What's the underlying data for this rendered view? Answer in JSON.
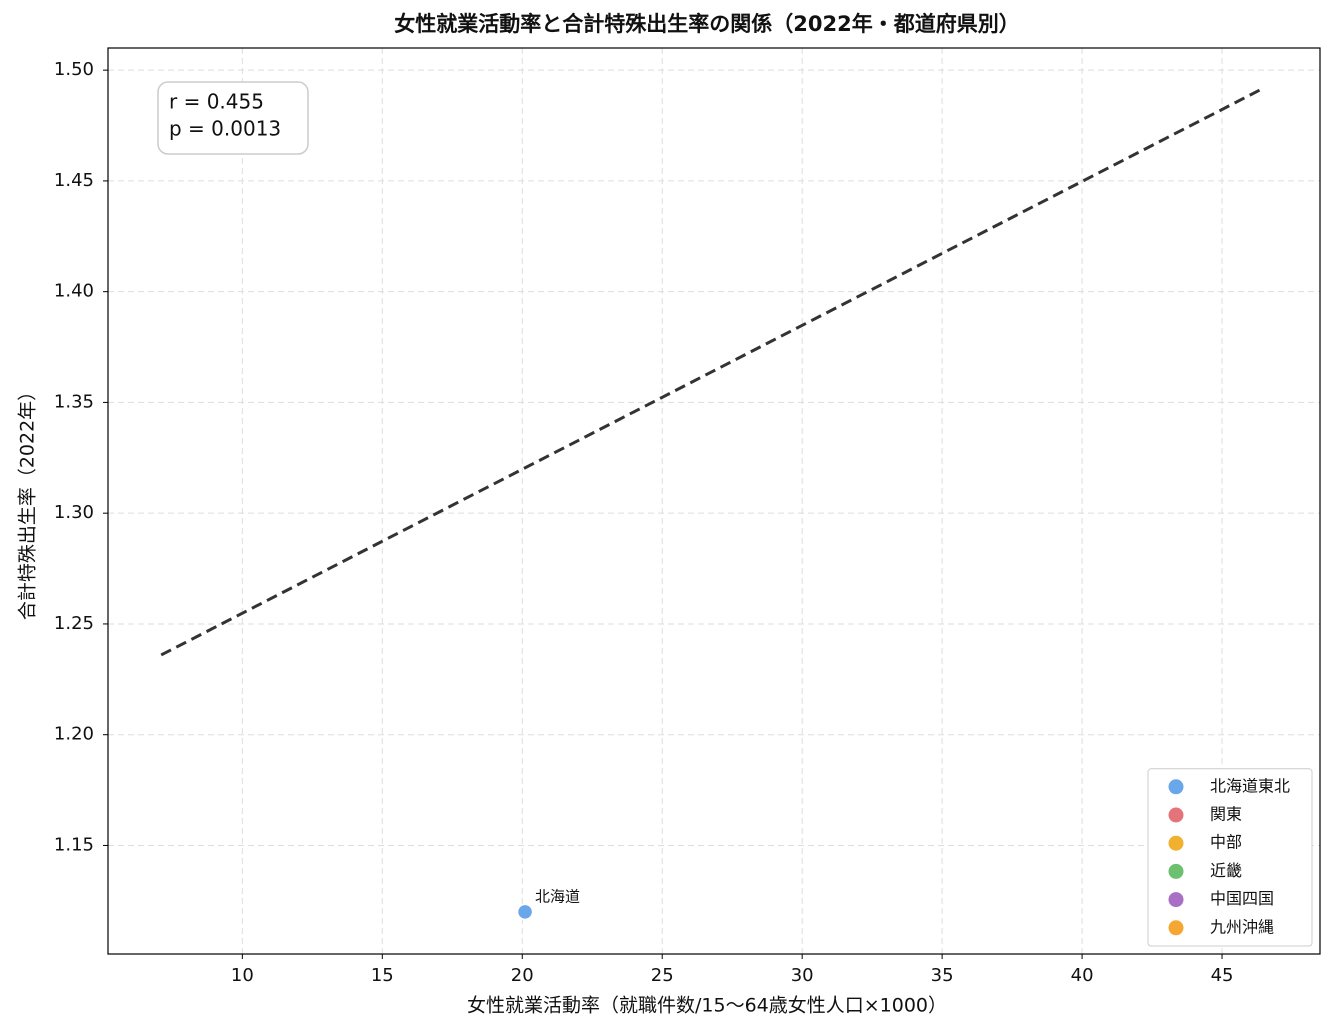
{
  "chart_data": {
    "type": "scatter",
    "title": "女性就業活動率と合計特殊出生率の関係（2022年・都道府県別）",
    "x_label": "女性就業活動率（就職件数/15〜64歳女性人口×1000）",
    "y_label": "合計特殊出生率（2022年）",
    "xlim": [
      5.2,
      48.5
    ],
    "ylim": [
      1.101,
      1.51
    ],
    "xticks": [
      10,
      15,
      20,
      25,
      30,
      35,
      40,
      45
    ],
    "yticks": [
      1.15,
      {
        "value": 1.2,
        "label": "1.20"
      },
      1.25,
      {
        "value": 1.3,
        "label": "1.30"
      },
      1.35,
      {
        "value": 1.4,
        "label": "1.40"
      },
      1.45,
      {
        "value": 1.5,
        "label": "1.50"
      }
    ],
    "grid": true,
    "legend": "lower right",
    "annotation": [
      "r = 0.455",
      "p = 0.0013"
    ],
    "trendline": {
      "color": "#333333",
      "x": [
        7.1,
        46.5
      ],
      "values": [
        1.236,
        1.492
      ]
    },
    "series": [
      {
        "name": "北海道東北",
        "color": "#6aa6ea",
        "x": [
          20.1
        ],
        "values": [
          1.12
        ],
        "labels": [
          "北海道"
        ]
      },
      {
        "name": "関東",
        "color": "#e5737a",
        "x": [],
        "values": [],
        "labels": []
      },
      {
        "name": "中部",
        "color": "#f0b22e",
        "x": [],
        "values": [],
        "labels": []
      },
      {
        "name": "近畿",
        "color": "#6cc070",
        "x": [],
        "values": [],
        "labels": []
      },
      {
        "name": "中国四国",
        "color": "#a86fc4",
        "x": [],
        "values": [],
        "labels": []
      },
      {
        "name": "九州沖縄",
        "color": "#f5a733",
        "x": [],
        "values": [],
        "labels": []
      }
    ]
  }
}
